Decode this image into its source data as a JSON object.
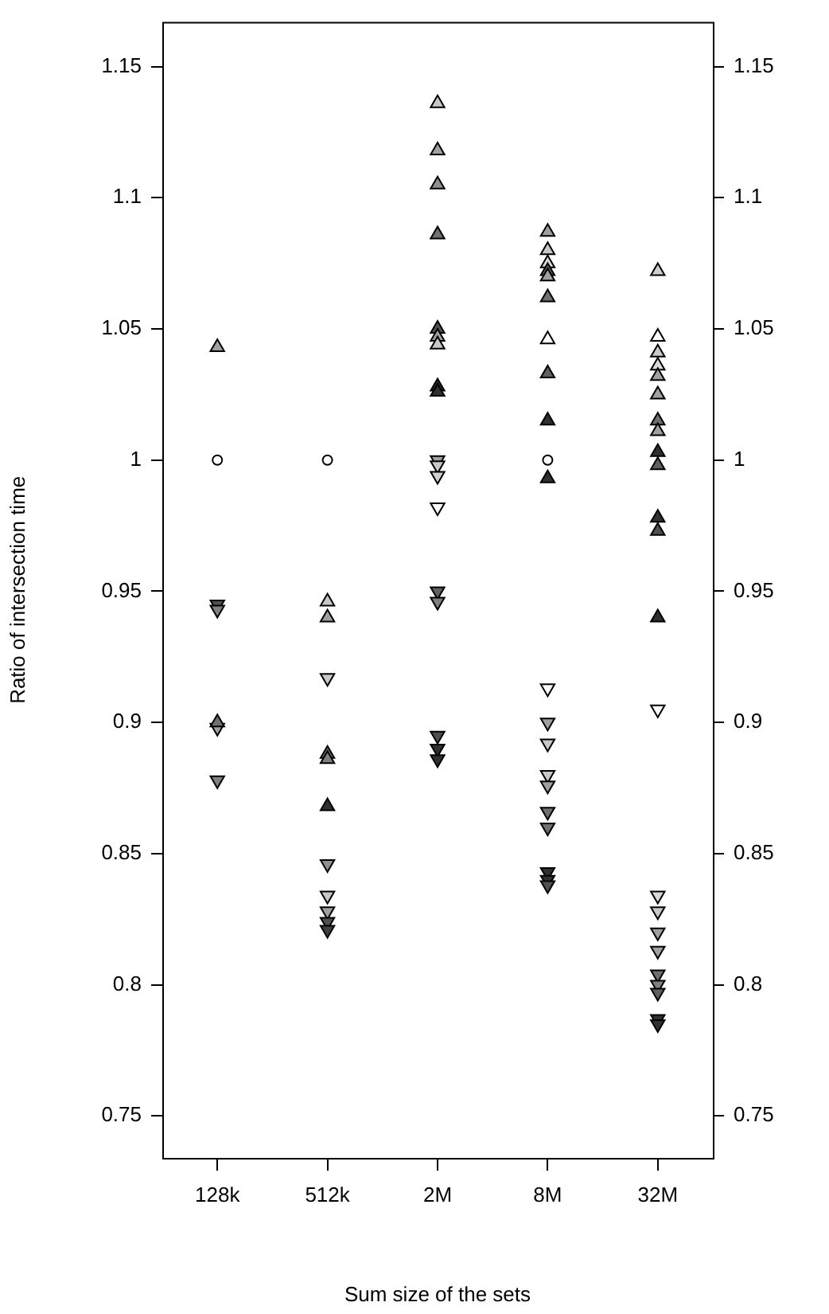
{
  "chart_data": {
    "type": "scatter",
    "xlabel": "Sum size of the sets",
    "ylabel": "Ratio of intersection time",
    "categories": [
      "128k",
      "512k",
      "2M",
      "8M",
      "32M"
    ],
    "ylim": [
      0.734,
      1.167
    ],
    "yticks": [
      0.75,
      0.8,
      0.85,
      0.9,
      0.95,
      1,
      1.05,
      1.1,
      1.15
    ],
    "y2lim": [
      0.734,
      1.167
    ],
    "y2ticks": [
      0.75,
      0.8,
      0.85,
      0.9,
      0.95,
      1,
      1.05,
      1.1,
      1.15
    ],
    "grid": false,
    "legend": false,
    "series": [
      {
        "marker": "triangle",
        "x": [
          "128k",
          "128k",
          "512k",
          "512k",
          "512k",
          "512k",
          "512k",
          "2M",
          "2M",
          "2M",
          "2M",
          "2M",
          "2M",
          "2M",
          "2M",
          "2M",
          "8M",
          "8M",
          "8M",
          "8M",
          "8M",
          "8M",
          "8M",
          "8M",
          "8M",
          "8M",
          "32M",
          "32M",
          "32M",
          "32M",
          "32M",
          "32M",
          "32M",
          "32M",
          "32M",
          "32M",
          "32M",
          "32M",
          "32M"
        ],
        "values": [
          1.043,
          0.9,
          0.946,
          0.94,
          0.888,
          0.886,
          0.868,
          1.136,
          1.118,
          1.105,
          1.086,
          1.05,
          1.047,
          1.044,
          1.028,
          1.026,
          1.087,
          1.08,
          1.075,
          1.072,
          1.07,
          1.062,
          1.046,
          1.033,
          1.015,
          0.993,
          1.072,
          1.047,
          1.041,
          1.036,
          1.032,
          1.025,
          1.015,
          1.011,
          1.003,
          0.998,
          0.978,
          0.973,
          0.94
        ],
        "colors": [
          "#a0a0a0",
          "#707070",
          "#c8c8c8",
          "#a0a0a0",
          "#707070",
          "#808080",
          "#303030",
          "#c8c8c8",
          "#a0a0a0",
          "#909090",
          "#707070",
          "#505050",
          "#a0a0a0",
          "#c8c8c8",
          "#303030",
          "#303030",
          "#a0a0a0",
          "#c8c8c8",
          "#d8d8d8",
          "#606060",
          "#a0a0a0",
          "#707070",
          "#ffffff",
          "#606060",
          "#303030",
          "#303030",
          "#d0d0d0",
          "#ffffff",
          "#c8c8c8",
          "#d8d8d8",
          "#a0a0a0",
          "#a0a0a0",
          "#707070",
          "#a0a0a0",
          "#303030",
          "#606060",
          "#303030",
          "#505050",
          "#303030"
        ]
      },
      {
        "marker": "triangle_down",
        "x": [
          "128k",
          "128k",
          "128k",
          "128k",
          "512k",
          "512k",
          "512k",
          "512k",
          "512k",
          "512k",
          "2M",
          "2M",
          "2M",
          "2M",
          "2M",
          "2M",
          "2M",
          "2M",
          "2M",
          "8M",
          "8M",
          "8M",
          "8M",
          "8M",
          "8M",
          "8M",
          "8M",
          "8M",
          "8M",
          "32M",
          "32M",
          "32M",
          "32M",
          "32M",
          "32M",
          "32M",
          "32M",
          "32M",
          "32M"
        ],
        "values": [
          0.945,
          0.943,
          0.898,
          0.878,
          0.917,
          0.846,
          0.834,
          0.828,
          0.824,
          0.821,
          1.0,
          0.998,
          0.994,
          0.982,
          0.95,
          0.946,
          0.895,
          0.89,
          0.886,
          0.913,
          0.9,
          0.892,
          0.88,
          0.876,
          0.866,
          0.86,
          0.843,
          0.84,
          0.838,
          0.905,
          0.834,
          0.828,
          0.82,
          0.813,
          0.804,
          0.8,
          0.797,
          0.787,
          0.785
        ],
        "colors": [
          "#505050",
          "#808080",
          "#a0a0a0",
          "#808080",
          "#c8c8c8",
          "#909090",
          "#c8c8c8",
          "#a0a0a0",
          "#505050",
          "#404040",
          "#a0a0a0",
          "#c8c8c8",
          "#d0d0d0",
          "#ffffff",
          "#606060",
          "#808080",
          "#505050",
          "#303030",
          "#303030",
          "#ffffff",
          "#a0a0a0",
          "#c8c8c8",
          "#c8c8c8",
          "#a0a0a0",
          "#707070",
          "#707070",
          "#303030",
          "#303030",
          "#505050",
          "#ffffff",
          "#d8d8d8",
          "#c8c8c8",
          "#a0a0a0",
          "#a0a0a0",
          "#707070",
          "#808080",
          "#606060",
          "#303030",
          "#303030"
        ]
      },
      {
        "marker": "circle",
        "x": [
          "128k",
          "512k",
          "8M"
        ],
        "values": [
          1.0,
          1.0,
          1.0
        ],
        "color": "#ffffff"
      }
    ]
  }
}
